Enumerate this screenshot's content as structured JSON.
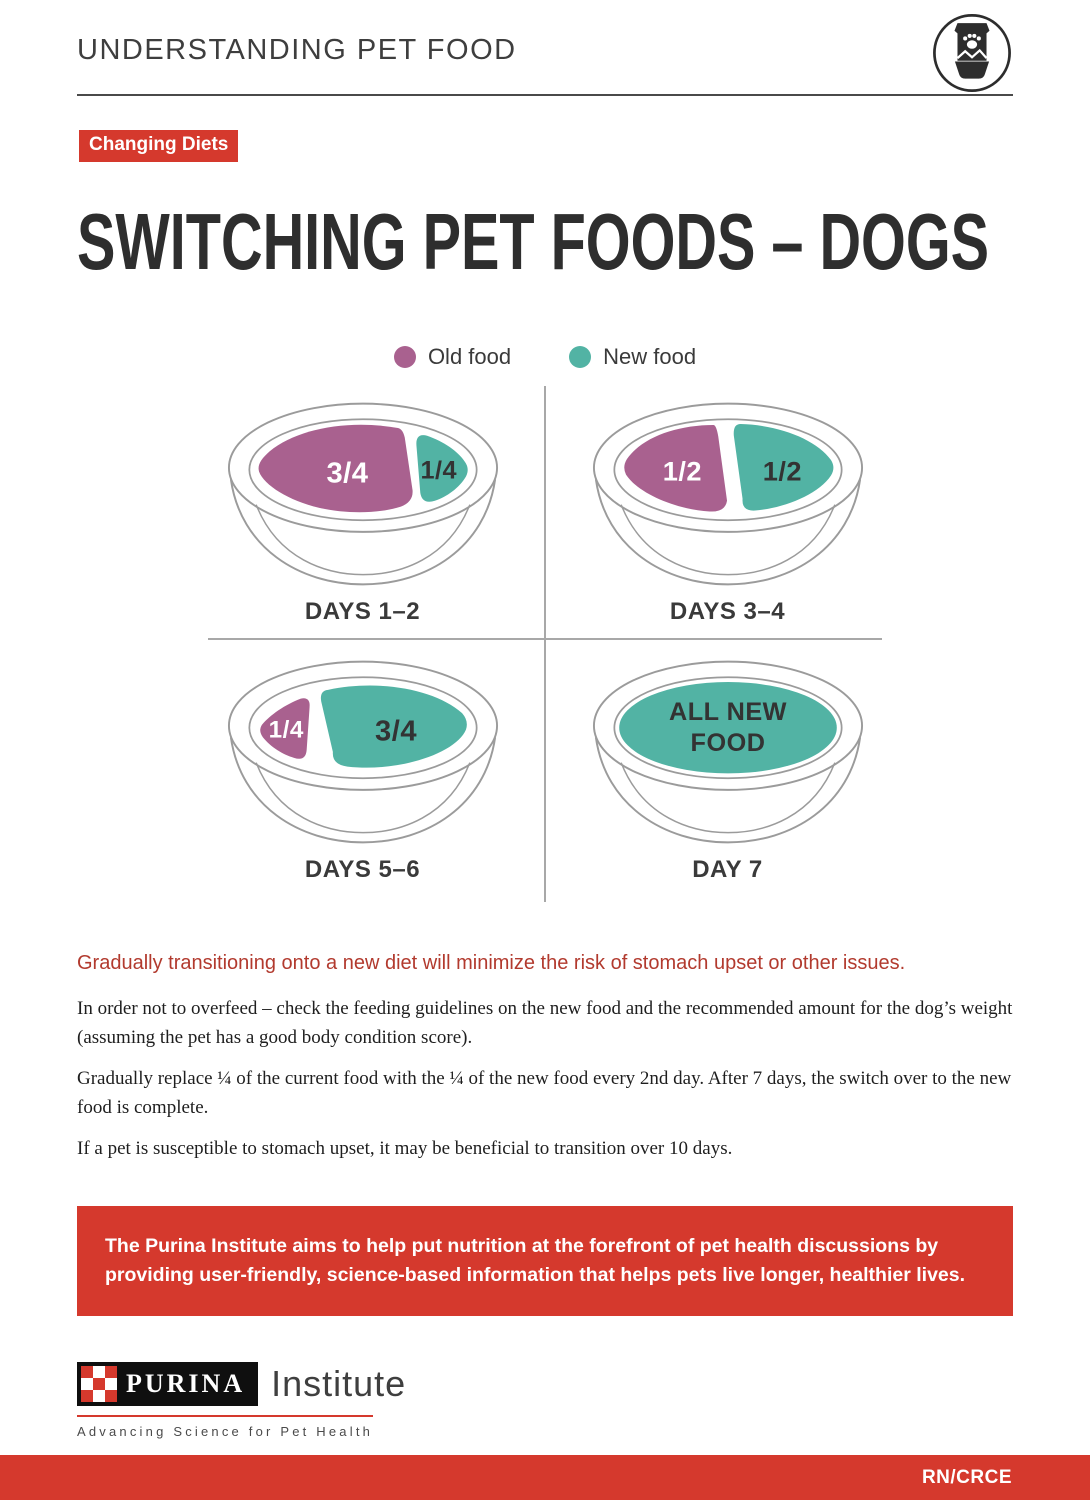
{
  "header": {
    "title": "UNDERSTANDING PET FOOD",
    "icon": "pet-food-bag-and-bowl-icon"
  },
  "badge": {
    "label": "Changing Diets"
  },
  "page_title": "SWITCHING PET FOODS – DOGS",
  "legend": {
    "old": {
      "label": "Old food",
      "color": "#a9618f"
    },
    "new": {
      "label": "New food",
      "color": "#52b3a4"
    }
  },
  "diagram": {
    "bowls": [
      {
        "label": "DAYS 1–2",
        "variant": "old34",
        "portions": [
          {
            "food": "old",
            "text": "3/4",
            "text_color": "#ffffff"
          },
          {
            "food": "new",
            "text": "1/4",
            "text_color": "#333333"
          }
        ]
      },
      {
        "label": "DAYS 3–4",
        "variant": "half",
        "portions": [
          {
            "food": "old",
            "text": "1/2",
            "text_color": "#ffffff"
          },
          {
            "food": "new",
            "text": "1/2",
            "text_color": "#333333"
          }
        ]
      },
      {
        "label": "DAYS 5–6",
        "variant": "new34",
        "portions": [
          {
            "food": "old",
            "text": "1/4",
            "text_color": "#ffffff"
          },
          {
            "food": "new",
            "text": "3/4",
            "text_color": "#333333"
          }
        ]
      },
      {
        "label": "DAY 7",
        "variant": "all",
        "portions": [
          {
            "food": "new",
            "text": "ALL NEW\nFOOD",
            "text_color": "#333333"
          }
        ]
      }
    ]
  },
  "highlight": "Gradually transitioning onto a new diet will minimize the risk of stomach upset or other issues.",
  "paragraphs": [
    "In order not to overfeed – check the feeding guidelines on the new food and the recommended amount for the dog’s weight (assuming the pet has a good body condition score).",
    "Gradually replace ¼ of the current food with the ¼ of the new food every 2nd day. After 7 days, the switch over to the new food is complete.",
    "If a pet is susceptible to stomach upset, it may be beneficial to transition over 10 days."
  ],
  "banner": {
    "text": "The Purina Institute aims to help put nutrition at the forefront of pet health discussions by providing user-friendly, science-based information that helps pets live longer, healthier lives."
  },
  "footer": {
    "brand": "PURINA",
    "brand_suffix": "Institute",
    "tagline": "Advancing Science for Pet Health",
    "code": "RN/CRCE"
  },
  "colors": {
    "red": "#d5392d",
    "highlight_red": "#b23a2e",
    "bowl_stroke": "#9b9b9b",
    "title_ink": "#2e2e2e"
  }
}
